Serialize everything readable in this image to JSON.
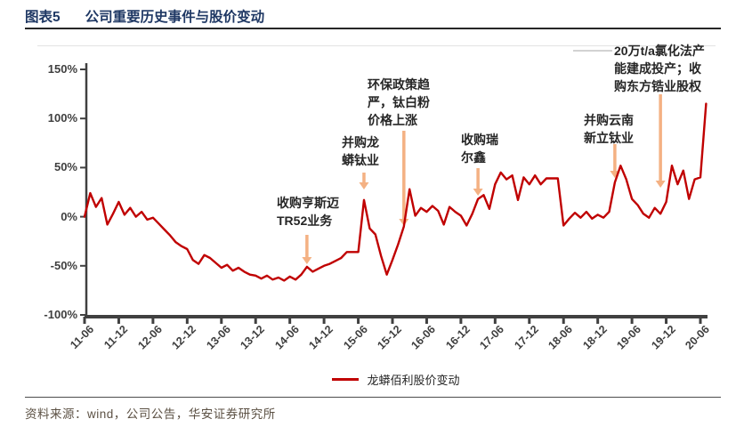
{
  "header": {
    "tag": "图表5",
    "title": "公司重要历史事件与股价变动"
  },
  "colors": {
    "line": "#C00000",
    "arrow": "#F4B183",
    "axis": "#404040",
    "title": "#1F3864",
    "source": "#5C5144"
  },
  "chart_data": {
    "type": "line",
    "title": "公司重要历史事件与股价变动",
    "xlabel": "",
    "ylabel": "",
    "unit": "%",
    "ylim": [
      -100,
      150
    ],
    "grid": "off",
    "legend_position": "bottom",
    "y_ticks": [
      "150%",
      "100%",
      "50%",
      "0%",
      "-50%",
      "-100%"
    ],
    "x_tick_labels": [
      "11-06",
      "11-12",
      "12-06",
      "12-12",
      "13-06",
      "13-12",
      "14-06",
      "14-12",
      "15-06",
      "15-12",
      "16-06",
      "16-12",
      "17-06",
      "17-12",
      "18-06",
      "18-12",
      "19-06",
      "19-12",
      "20-06"
    ],
    "series": [
      {
        "name": "龙蟒佰利股价变动",
        "color": "#C00000",
        "points": [
          [
            "2011-06",
            0
          ],
          [
            "2011-07",
            24
          ],
          [
            "2011-08",
            10
          ],
          [
            "2011-09",
            19
          ],
          [
            "2011-10",
            -8
          ],
          [
            "2011-11",
            3
          ],
          [
            "2011-12",
            15
          ],
          [
            "2012-01",
            2
          ],
          [
            "2012-02",
            9
          ],
          [
            "2012-03",
            0
          ],
          [
            "2012-04",
            5
          ],
          [
            "2012-05",
            -3
          ],
          [
            "2012-06",
            -1
          ],
          [
            "2012-07",
            -7
          ],
          [
            "2012-08",
            -13
          ],
          [
            "2012-09",
            -19
          ],
          [
            "2012-10",
            -26
          ],
          [
            "2012-11",
            -30
          ],
          [
            "2012-12",
            -33
          ],
          [
            "2013-01",
            -44
          ],
          [
            "2013-02",
            -48
          ],
          [
            "2013-03",
            -39
          ],
          [
            "2013-04",
            -42
          ],
          [
            "2013-05",
            -47
          ],
          [
            "2013-06",
            -52
          ],
          [
            "2013-07",
            -49
          ],
          [
            "2013-08",
            -55
          ],
          [
            "2013-09",
            -52
          ],
          [
            "2013-10",
            -56
          ],
          [
            "2013-11",
            -59
          ],
          [
            "2013-12",
            -60
          ],
          [
            "2014-01",
            -63
          ],
          [
            "2014-02",
            -60
          ],
          [
            "2014-03",
            -64
          ],
          [
            "2014-04",
            -62
          ],
          [
            "2014-05",
            -65
          ],
          [
            "2014-06",
            -61
          ],
          [
            "2014-07",
            -64
          ],
          [
            "2014-08",
            -59
          ],
          [
            "2014-09",
            -51
          ],
          [
            "2014-10",
            -56
          ],
          [
            "2014-11",
            -53
          ],
          [
            "2014-12",
            -50
          ],
          [
            "2015-01",
            -48
          ],
          [
            "2015-02",
            -45
          ],
          [
            "2015-03",
            -42
          ],
          [
            "2015-04",
            -36
          ],
          [
            "2015-05",
            -36
          ],
          [
            "2015-06",
            -36
          ],
          [
            "2015-07",
            17
          ],
          [
            "2015-08",
            -12
          ],
          [
            "2015-09",
            -18
          ],
          [
            "2015-10",
            -40
          ],
          [
            "2015-11",
            -59
          ],
          [
            "2015-12",
            -44
          ],
          [
            "2016-01",
            -28
          ],
          [
            "2016-02",
            -10
          ],
          [
            "2016-03",
            28
          ],
          [
            "2016-04",
            1
          ],
          [
            "2016-05",
            9
          ],
          [
            "2016-06",
            5
          ],
          [
            "2016-07",
            11
          ],
          [
            "2016-08",
            6
          ],
          [
            "2016-09",
            -8
          ],
          [
            "2016-10",
            10
          ],
          [
            "2016-11",
            5
          ],
          [
            "2016-12",
            1
          ],
          [
            "2017-01",
            -9
          ],
          [
            "2017-02",
            3
          ],
          [
            "2017-03",
            18
          ],
          [
            "2017-04",
            22
          ],
          [
            "2017-05",
            8
          ],
          [
            "2017-06",
            33
          ],
          [
            "2017-07",
            45
          ],
          [
            "2017-08",
            38
          ],
          [
            "2017-09",
            42
          ],
          [
            "2017-10",
            17
          ],
          [
            "2017-11",
            40
          ],
          [
            "2017-12",
            33
          ],
          [
            "2018-01",
            42
          ],
          [
            "2018-02",
            33
          ],
          [
            "2018-03",
            39
          ],
          [
            "2018-04",
            39
          ],
          [
            "2018-05",
            39
          ],
          [
            "2018-06",
            -9
          ],
          [
            "2018-07",
            -2
          ],
          [
            "2018-08",
            4
          ],
          [
            "2018-09",
            -1
          ],
          [
            "2018-10",
            5
          ],
          [
            "2018-11",
            -2
          ],
          [
            "2018-12",
            2
          ],
          [
            "2019-01",
            -1
          ],
          [
            "2019-02",
            5
          ],
          [
            "2019-03",
            35
          ],
          [
            "2019-04",
            52
          ],
          [
            "2019-05",
            38
          ],
          [
            "2019-06",
            18
          ],
          [
            "2019-07",
            12
          ],
          [
            "2019-08",
            3
          ],
          [
            "2019-09",
            -1
          ],
          [
            "2019-10",
            9
          ],
          [
            "2019-11",
            3
          ],
          [
            "2019-12",
            15
          ],
          [
            "2020-01",
            52
          ],
          [
            "2020-02",
            33
          ],
          [
            "2020-03",
            47
          ],
          [
            "2020-04",
            18
          ],
          [
            "2020-05",
            38
          ],
          [
            "2020-06",
            40
          ],
          [
            "2020-07",
            115
          ]
        ]
      }
    ],
    "annotations": [
      {
        "label": "收购亨斯迈TR52业务",
        "lines": [
          "收购亨斯迈",
          "TR52业务"
        ],
        "date": "2014-09"
      },
      {
        "label": "并购龙蟒钛业",
        "lines": [
          "并购龙",
          "蟒钛业"
        ],
        "date": "2015-07"
      },
      {
        "label": "环保政策趋严，钛白粉价格上涨",
        "lines": [
          "环保政策趋",
          "严，钛白粉",
          "价格上涨"
        ],
        "date": "2016-02"
      },
      {
        "label": "收购瑞尔鑫",
        "lines": [
          "收购瑞",
          "尔鑫"
        ],
        "date": "2017-03"
      },
      {
        "label": "并购云南新立钛业",
        "lines": [
          "并购云南",
          "新立钛业"
        ],
        "date": "2019-03"
      },
      {
        "label": "20万t/a氯化法产能建成投产；收购东方锆业股权",
        "lines": [
          "20万t/a氯化法产",
          "能建成投产；收",
          "购东方锆业股权"
        ],
        "date": "2019-11"
      }
    ]
  },
  "legend": {
    "label": "龙蟒佰利股价变动"
  },
  "footer": {
    "source": "资料来源：wind，公司公告，华安证券研究所"
  }
}
